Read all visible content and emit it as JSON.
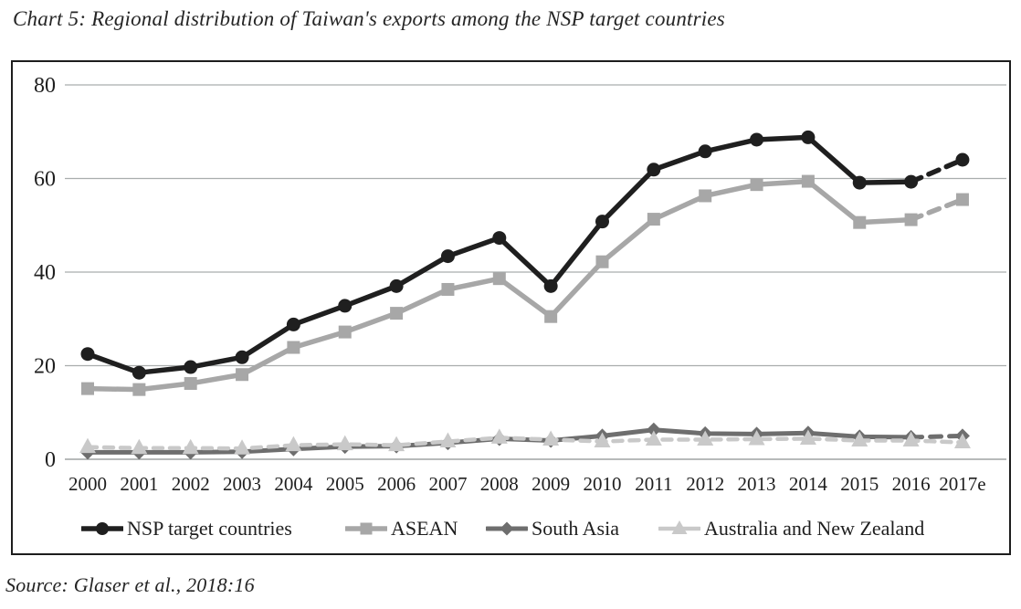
{
  "title": "Chart 5: Regional distribution of Taiwan's exports among the NSP target countries",
  "source": "Source: Glaser et al., 2018:16",
  "colors": {
    "frame_border": "#1d1d1d",
    "gridline": "#a9adad",
    "baseline": "#8c9090",
    "text": "#1e1e1e"
  },
  "chart_data": {
    "type": "line",
    "title": "Chart 5: Regional distribution of Taiwan's exports among the NSP target countries",
    "xlabel": "",
    "ylabel": "",
    "ylim": [
      0,
      80
    ],
    "yticks": [
      0,
      20,
      40,
      60,
      80
    ],
    "grid": true,
    "legend_position": "bottom",
    "note": "2017e values are estimates, shown with dashed line segments",
    "categories": [
      "2000",
      "2001",
      "2002",
      "2003",
      "2004",
      "2005",
      "2006",
      "2007",
      "2008",
      "2009",
      "2010",
      "2011",
      "2012",
      "2013",
      "2014",
      "2015",
      "2016",
      "2017e"
    ],
    "series": [
      {
        "name": "NSP target countries",
        "marker": "circle",
        "color": "#1f1f1f",
        "line_width": 5.5,
        "dashed_from_index": 16,
        "values": [
          22.5,
          18.5,
          19.7,
          21.8,
          28.8,
          32.8,
          37.0,
          43.4,
          47.3,
          37.0,
          50.8,
          61.9,
          65.8,
          68.3,
          68.8,
          59.1,
          59.3,
          64.0
        ]
      },
      {
        "name": "ASEAN",
        "marker": "square",
        "color": "#a7a7a7",
        "line_width": 5.5,
        "dashed_from_index": 16,
        "values": [
          15.1,
          14.9,
          16.2,
          18.1,
          23.9,
          27.2,
          31.2,
          36.3,
          38.6,
          30.5,
          42.2,
          51.3,
          56.3,
          58.7,
          59.4,
          50.6,
          51.2,
          55.5
        ]
      },
      {
        "name": "South Asia",
        "marker": "diamond",
        "color": "#6e6e6e",
        "line_width": 5,
        "dashed_from_index": 16,
        "values": [
          1.5,
          1.5,
          1.5,
          1.6,
          2.2,
          2.7,
          2.8,
          3.5,
          4.4,
          4.0,
          5.0,
          6.3,
          5.5,
          5.4,
          5.6,
          4.8,
          4.7,
          5.0
        ]
      },
      {
        "name": "Australia and New Zealand",
        "marker": "triangle",
        "color": "#c9c9c9",
        "line_width": 4.5,
        "dashed": true,
        "values": [
          2.6,
          2.4,
          2.4,
          2.3,
          3.0,
          3.2,
          3.0,
          3.8,
          4.6,
          4.2,
          3.8,
          4.2,
          4.2,
          4.3,
          4.4,
          4.0,
          4.0,
          3.6
        ]
      }
    ]
  }
}
